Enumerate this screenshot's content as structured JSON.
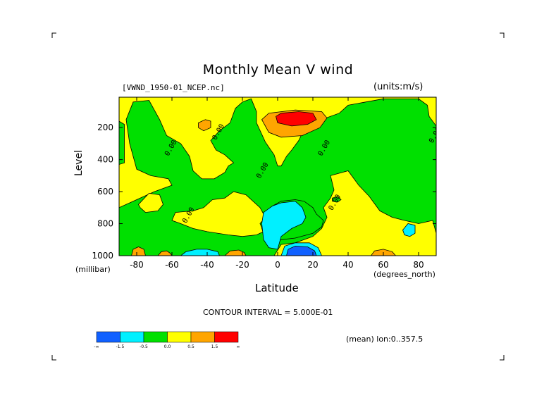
{
  "chart_data": {
    "type": "heatmap",
    "title": "Monthly Mean V wind",
    "dataset_label": "[VWND_1950-01_NCEP.nc]",
    "units_label": "(units:m/s)",
    "xlabel": "Latitude",
    "x_unit": "(degrees_north)",
    "ylabel": "Level",
    "y_unit": "(millibar)",
    "xlim": [
      -90,
      90
    ],
    "ylim": [
      1000,
      10
    ],
    "x_ticks": [
      "-80",
      "-60",
      "-40",
      "-20",
      "0",
      "20",
      "40",
      "60",
      "80"
    ],
    "x_tick_values": [
      -80,
      -60,
      -40,
      -20,
      0,
      20,
      40,
      60,
      80
    ],
    "y_ticks": [
      "200",
      "400",
      "600",
      "800",
      "1000"
    ],
    "y_tick_values": [
      200,
      400,
      600,
      800,
      1000
    ],
    "contour_label": "0.00",
    "contour_interval_text": "CONTOUR INTERVAL = 5.000E-01",
    "mean_text": "(mean) lon:0..357.5",
    "legend": {
      "colors": [
        "#1060ff",
        "#00f0ff",
        "#00e000",
        "#ffff00",
        "#ffa500",
        "#ff0000"
      ],
      "labels": [
        "-∞",
        "-1.5",
        "-0.5",
        "0.0",
        "0.5",
        "1.5",
        "∞"
      ]
    },
    "regions": [
      {
        "fill": "#00e000",
        "poly": [
          [
            -90,
            160
          ],
          [
            -87,
            180
          ],
          [
            -87,
            420
          ],
          [
            -90,
            430
          ]
        ]
      },
      {
        "fill": "#00e000",
        "poly": [
          [
            -82,
            40
          ],
          [
            -73,
            30
          ],
          [
            -67,
            150
          ],
          [
            -63,
            250
          ],
          [
            -55,
            300
          ],
          [
            -50,
            380
          ],
          [
            -48,
            470
          ],
          [
            -43,
            520
          ],
          [
            -36,
            520
          ],
          [
            -30,
            480
          ],
          [
            -28,
            440
          ],
          [
            -25,
            420
          ],
          [
            -30,
            370
          ],
          [
            -35,
            340
          ],
          [
            -38,
            280
          ],
          [
            -33,
            220
          ],
          [
            -27,
            170
          ],
          [
            -24,
            80
          ],
          [
            -20,
            40
          ],
          [
            -15,
            20
          ],
          [
            -12,
            100
          ],
          [
            -12,
            170
          ],
          [
            -7,
            290
          ],
          [
            -2,
            370
          ],
          [
            0,
            440
          ],
          [
            2,
            440
          ],
          [
            5,
            380
          ],
          [
            8,
            340
          ],
          [
            12,
            280
          ],
          [
            15,
            210
          ],
          [
            18,
            180
          ],
          [
            25,
            150
          ],
          [
            35,
            110
          ],
          [
            40,
            60
          ],
          [
            50,
            40
          ],
          [
            60,
            20
          ],
          [
            75,
            20
          ],
          [
            80,
            20
          ],
          [
            85,
            60
          ],
          [
            86,
            130
          ],
          [
            90,
            190
          ],
          [
            90,
            1000
          ],
          [
            -90,
            1000
          ],
          [
            -90,
            700
          ],
          [
            -80,
            650
          ],
          [
            -70,
            600
          ],
          [
            -60,
            560
          ],
          [
            -62,
            520
          ],
          [
            -72,
            500
          ],
          [
            -80,
            460
          ],
          [
            -84,
            300
          ],
          [
            -86,
            150
          ]
        ]
      },
      {
        "fill": "#ffff00",
        "poly": [
          [
            -73,
            610
          ],
          [
            -67,
            620
          ],
          [
            -65,
            680
          ],
          [
            -68,
            720
          ],
          [
            -75,
            730
          ],
          [
            -78,
            700
          ],
          [
            -79,
            680
          ]
        ]
      },
      {
        "fill": "#ffff00",
        "poly": [
          [
            -58,
            730
          ],
          [
            -48,
            720
          ],
          [
            -42,
            700
          ],
          [
            -37,
            650
          ],
          [
            -30,
            640
          ],
          [
            -25,
            600
          ],
          [
            -18,
            620
          ],
          [
            -14,
            660
          ],
          [
            -10,
            700
          ],
          [
            -7,
            760
          ],
          [
            -10,
            800
          ],
          [
            -8,
            850
          ],
          [
            -12,
            870
          ],
          [
            -20,
            880
          ],
          [
            -28,
            870
          ],
          [
            -40,
            850
          ],
          [
            -48,
            830
          ],
          [
            -55,
            800
          ],
          [
            -60,
            780
          ]
        ]
      },
      {
        "fill": "#ffff00",
        "poly": [
          [
            30,
            500
          ],
          [
            40,
            470
          ],
          [
            46,
            560
          ],
          [
            52,
            630
          ],
          [
            58,
            720
          ],
          [
            65,
            760
          ],
          [
            72,
            780
          ],
          [
            80,
            800
          ],
          [
            88,
            780
          ],
          [
            90,
            860
          ],
          [
            90,
            1000
          ],
          [
            -2,
            1000
          ],
          [
            2,
            930
          ],
          [
            10,
            920
          ],
          [
            20,
            880
          ],
          [
            25,
            830
          ],
          [
            28,
            760
          ],
          [
            26,
            700
          ],
          [
            30,
            640
          ],
          [
            32,
            590
          ]
        ]
      },
      {
        "fill": "#00e000",
        "poly": [
          [
            -3,
            930
          ],
          [
            2,
            900
          ],
          [
            10,
            890
          ],
          [
            20,
            860
          ],
          [
            25,
            820
          ],
          [
            26,
            780
          ],
          [
            22,
            740
          ],
          [
            20,
            700
          ],
          [
            15,
            660
          ],
          [
            10,
            650
          ],
          [
            2,
            660
          ],
          [
            -3,
            690
          ],
          [
            -8,
            760
          ],
          [
            -9,
            830
          ],
          [
            -7,
            890
          ]
        ]
      },
      {
        "fill": "#00f0ff",
        "poly": [
          [
            -9,
            800
          ],
          [
            -8,
            730
          ],
          [
            -3,
            690
          ],
          [
            2,
            670
          ],
          [
            10,
            660
          ],
          [
            14,
            700
          ],
          [
            16,
            760
          ],
          [
            14,
            800
          ],
          [
            8,
            830
          ],
          [
            2,
            880
          ],
          [
            0,
            960
          ],
          [
            -5,
            950
          ],
          [
            -8,
            900
          ]
        ]
      },
      {
        "fill": "#00f0ff",
        "poly": [
          [
            -55,
            1000
          ],
          [
            -52,
            975
          ],
          [
            -46,
            960
          ],
          [
            -40,
            960
          ],
          [
            -34,
            975
          ],
          [
            -33,
            1000
          ]
        ]
      },
      {
        "fill": "#00f0ff",
        "poly": [
          [
            2,
            1000
          ],
          [
            4,
            940
          ],
          [
            10,
            920
          ],
          [
            18,
            920
          ],
          [
            23,
            950
          ],
          [
            25,
            1000
          ]
        ]
      },
      {
        "fill": "#1060ff",
        "poly": [
          [
            5,
            1000
          ],
          [
            6,
            960
          ],
          [
            10,
            940
          ],
          [
            17,
            945
          ],
          [
            21,
            970
          ],
          [
            22,
            1000
          ]
        ]
      },
      {
        "fill": "#00f0ff",
        "poly": [
          [
            71,
            840
          ],
          [
            74,
            800
          ],
          [
            78,
            810
          ],
          [
            78,
            860
          ],
          [
            75,
            880
          ],
          [
            72,
            870
          ]
        ]
      },
      {
        "fill": "#00e000",
        "poly": [
          [
            31,
            640
          ],
          [
            34,
            630
          ],
          [
            36,
            650
          ],
          [
            34,
            665
          ],
          [
            31,
            660
          ]
        ]
      },
      {
        "fill": "#ffa500",
        "poly": [
          [
            -83,
            1000
          ],
          [
            -82,
            960
          ],
          [
            -79,
            945
          ],
          [
            -76,
            960
          ],
          [
            -75,
            1000
          ]
        ]
      },
      {
        "fill": "#ffa500",
        "poly": [
          [
            -68,
            1000
          ],
          [
            -66,
            975
          ],
          [
            -63,
            970
          ],
          [
            -61,
            985
          ],
          [
            -60,
            1000
          ]
        ]
      },
      {
        "fill": "#ffa500",
        "poly": [
          [
            -30,
            1000
          ],
          [
            -27,
            970
          ],
          [
            -22,
            965
          ],
          [
            -19,
            980
          ],
          [
            -18,
            1000
          ]
        ]
      },
      {
        "fill": "#ffa500",
        "poly": [
          [
            53,
            1000
          ],
          [
            55,
            970
          ],
          [
            60,
            960
          ],
          [
            65,
            975
          ],
          [
            67,
            1000
          ]
        ]
      },
      {
        "fill": "#ffa500",
        "poly": [
          [
            -45,
            170
          ],
          [
            -41,
            150
          ],
          [
            -38,
            160
          ],
          [
            -38,
            200
          ],
          [
            -42,
            220
          ],
          [
            -45,
            200
          ]
        ]
      },
      {
        "fill": "#ffa500",
        "poly": [
          [
            -9,
            150
          ],
          [
            -5,
            110
          ],
          [
            10,
            90
          ],
          [
            25,
            100
          ],
          [
            28,
            140
          ],
          [
            24,
            200
          ],
          [
            14,
            250
          ],
          [
            2,
            260
          ],
          [
            -5,
            230
          ]
        ]
      },
      {
        "fill": "#ff0000",
        "poly": [
          [
            -1,
            130
          ],
          [
            2,
            110
          ],
          [
            12,
            100
          ],
          [
            20,
            110
          ],
          [
            22,
            150
          ],
          [
            17,
            180
          ],
          [
            8,
            190
          ],
          [
            0,
            170
          ]
        ]
      }
    ],
    "contour_labels": [
      {
        "x": -62,
        "y": 380,
        "text": "0.00"
      },
      {
        "x": -35,
        "y": 280,
        "text": "0.00"
      },
      {
        "x": -10,
        "y": 520,
        "text": "0.00"
      },
      {
        "x": 25,
        "y": 380,
        "text": "0.00"
      },
      {
        "x": 31,
        "y": 720,
        "text": "0.00"
      },
      {
        "x": -52,
        "y": 800,
        "text": "0.00"
      },
      {
        "x": 80,
        "y": 20,
        "text": "0.00"
      },
      {
        "x": 88,
        "y": 300,
        "text": "0.00"
      }
    ]
  }
}
